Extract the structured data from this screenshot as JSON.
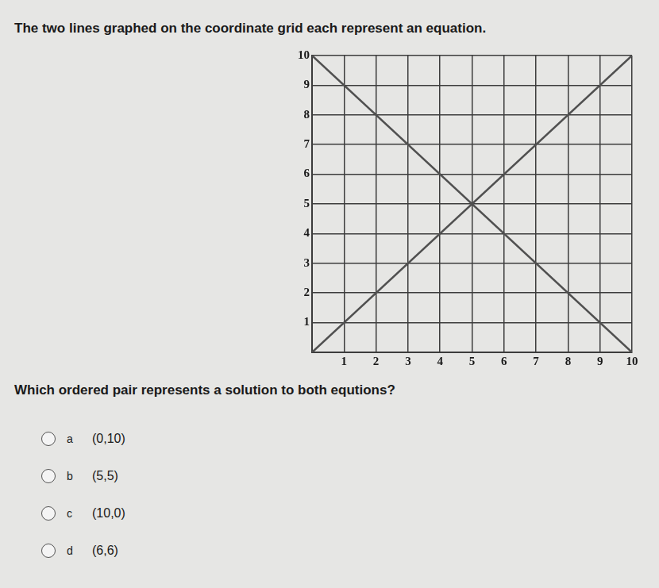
{
  "prompt": "The two lines graphed on the coordinate grid each represent an equation.",
  "chart_data": {
    "type": "line",
    "x": [
      0,
      10
    ],
    "series": [
      {
        "color": "#505050",
        "values": [
          0,
          10
        ]
      },
      {
        "color": "#505050",
        "values": [
          10,
          0
        ]
      }
    ],
    "xlim": [
      0,
      10
    ],
    "xticks": [
      1,
      2,
      3,
      4,
      5,
      6,
      7,
      8,
      9,
      10
    ],
    "ylim": [
      0,
      10
    ],
    "yticks": [
      1,
      2,
      3,
      4,
      5,
      6,
      7,
      8,
      9,
      10
    ],
    "grid": true
  },
  "question": "Which ordered pair represents a solution to both equtions?",
  "options": [
    {
      "letter": "a",
      "text": "(0,10)"
    },
    {
      "letter": "b",
      "text": "(5,5)"
    },
    {
      "letter": "c",
      "text": "(10,0)"
    },
    {
      "letter": "d",
      "text": "(6,6)"
    }
  ]
}
